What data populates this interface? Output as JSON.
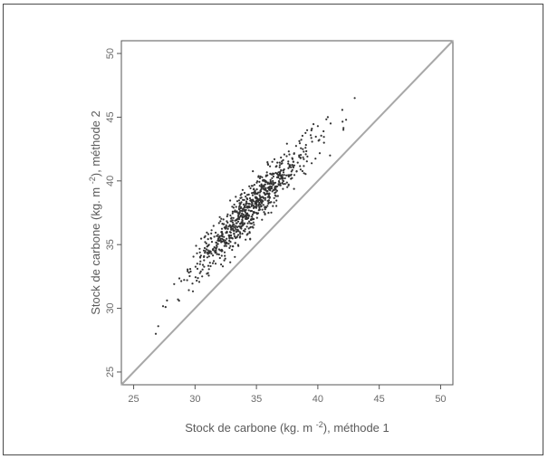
{
  "chart_data": {
    "type": "scatter",
    "xlabel": "Stock de carbone (kg. m^-2), méthode 1",
    "ylabel": "Stock de carbone (kg. m^-2), méthode 2",
    "xlim": [
      24,
      51
    ],
    "ylim": [
      24,
      51
    ],
    "xticks": [
      25,
      30,
      35,
      40,
      45,
      50
    ],
    "yticks": [
      25,
      30,
      35,
      40,
      45,
      50
    ],
    "reference_line": "y = x",
    "grid": false,
    "marker": "small dots",
    "colors": {
      "points": "#333333",
      "reference_line": "#a8a8a8",
      "frame": "#555555"
    },
    "points_generation": {
      "description": "dense cloud of ~800 points, roughly parallel to and above the 1:1 line",
      "n": 800,
      "x_mean": 34.6,
      "x_sd": 2.4,
      "x_range": [
        26.5,
        43.5
      ],
      "offset_mean": 3.3,
      "offset_sd": 0.9,
      "seed": 7
    },
    "points_sample": [
      [
        26.8,
        28.0
      ],
      [
        27.0,
        28.6
      ],
      [
        27.6,
        30.1
      ],
      [
        28.3,
        31.9
      ],
      [
        28.7,
        30.6
      ],
      [
        29.5,
        32.8
      ],
      [
        30.2,
        33.1
      ],
      [
        31.0,
        34.0
      ],
      [
        32.0,
        35.3
      ],
      [
        33.0,
        36.4
      ],
      [
        34.0,
        37.2
      ],
      [
        35.0,
        38.3
      ],
      [
        36.0,
        39.5
      ],
      [
        37.0,
        40.4
      ],
      [
        38.0,
        41.5
      ],
      [
        39.0,
        42.6
      ],
      [
        40.0,
        44.3
      ],
      [
        40.5,
        43.0
      ],
      [
        41.0,
        42.0
      ],
      [
        42.3,
        44.8
      ],
      [
        43.0,
        46.5
      ]
    ]
  }
}
